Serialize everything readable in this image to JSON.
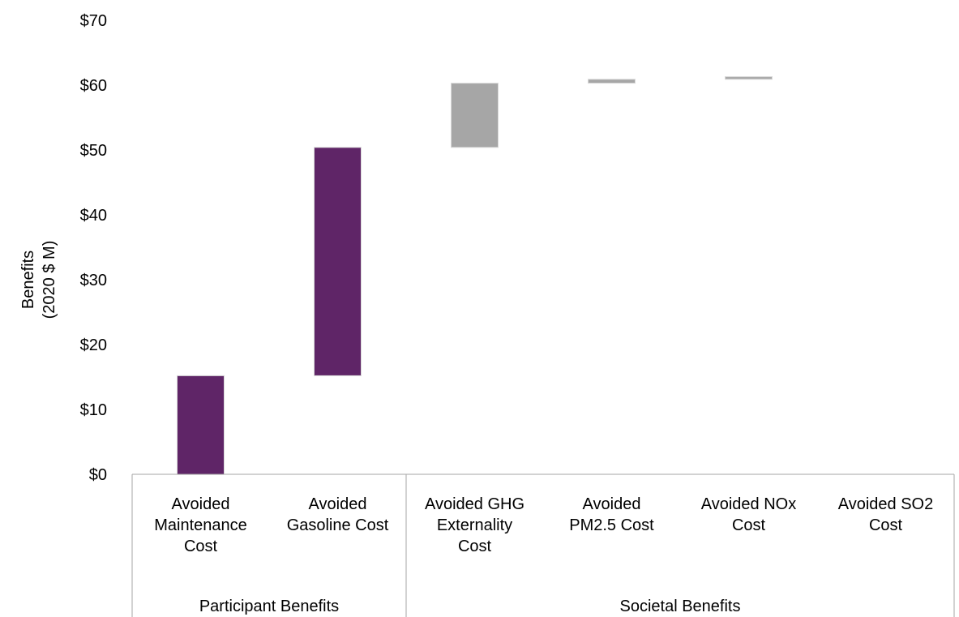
{
  "chart_data": {
    "type": "bar",
    "subtype": "waterfall",
    "title": "",
    "ylabel": [
      "Benefits",
      "(2020 $ M)"
    ],
    "ylim": [
      0,
      70
    ],
    "yticks": [
      0,
      10,
      20,
      30,
      40,
      50,
      60,
      70
    ],
    "ytick_labels": [
      "$0",
      "$10",
      "$20",
      "$30",
      "$40",
      "$50",
      "$60",
      "$70"
    ],
    "grid": false,
    "legend": "none",
    "colors": {
      "participant": "#5f2567",
      "societal": "#a6a6a6",
      "axis": "#a6a6a6"
    },
    "categories": [
      {
        "label_lines": [
          "Avoided",
          "Maintenance",
          "Cost"
        ],
        "start": 0,
        "end": 15.2,
        "group": "participant"
      },
      {
        "label_lines": [
          "Avoided",
          "Gasoline Cost"
        ],
        "start": 15.2,
        "end": 50.4,
        "group": "participant"
      },
      {
        "label_lines": [
          "Avoided GHG",
          "Externality",
          "Cost"
        ],
        "start": 50.4,
        "end": 60.3,
        "group": "societal"
      },
      {
        "label_lines": [
          "Avoided",
          "PM2.5 Cost"
        ],
        "start": 60.3,
        "end": 60.9,
        "group": "societal"
      },
      {
        "label_lines": [
          "Avoided NOx",
          "Cost"
        ],
        "start": 60.9,
        "end": 61.3,
        "group": "societal"
      },
      {
        "label_lines": [
          "Avoided SO2",
          "Cost"
        ],
        "start": 61.3,
        "end": 61.3,
        "group": "societal"
      }
    ],
    "groups": [
      {
        "key": "participant",
        "label": "Participant Benefits",
        "count": 2
      },
      {
        "key": "societal",
        "label": "Societal Benefits",
        "count": 4
      }
    ]
  }
}
